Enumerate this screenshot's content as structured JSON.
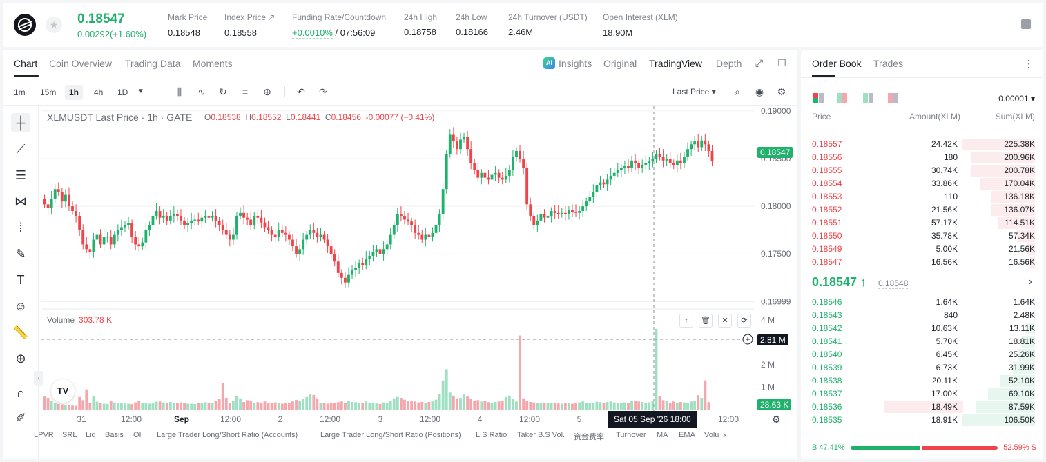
{
  "header": {
    "price": "0.18547",
    "change": "0.00292(+1.60%)",
    "stats": [
      {
        "label": "Mark Price",
        "value": "0.18548"
      },
      {
        "label": "Index Price ↗",
        "value": "0.18558"
      },
      {
        "label": "Funding Rate/Countdown",
        "value_up": "+0.0010%",
        "value": " / 07:56:09"
      },
      {
        "label": "24h High",
        "value": "0.18758"
      },
      {
        "label": "24h Low",
        "value": "0.18166"
      },
      {
        "label": "24h Turnover (USDT)",
        "value": "2.46M"
      },
      {
        "label": "Open Interest (XLM)",
        "value": "18.90M"
      }
    ]
  },
  "chart_tabs": [
    "Chart",
    "Coin Overview",
    "Trading Data",
    "Moments"
  ],
  "view_tabs": {
    "insights": "Insights",
    "ai": "AI",
    "original": "Original",
    "tradingview": "TradingView",
    "depth": "Depth"
  },
  "toolbar": {
    "intervals": [
      "1m",
      "15m",
      "1h",
      "4h",
      "1D"
    ],
    "active_interval": "1h",
    "price_type": "Last Price ▾"
  },
  "legend": {
    "title": "XLMUSDT Last Price · 1h · GATE",
    "o_label": "O",
    "o": "0.18538",
    "h_label": "H",
    "h": "0.18552",
    "l_label": "L",
    "l": "0.18441",
    "c_label": "C",
    "c": "0.18456",
    "chg": "-0.00077 (−0.41%)"
  },
  "volume_legend": {
    "label": "Volume",
    "value": "303.78 K"
  },
  "price_tags": {
    "last": "0.18547",
    "vol_cross": "2.81 M",
    "vol_last": "28.63 K"
  },
  "crosshair_date": "Sat 05 Sep '26   18:00",
  "tv_logo": "TV",
  "indicators": [
    "LPVR",
    "SRL",
    "Liq",
    "Basis",
    "OI",
    "Large Trader Long/Short Ratio (Accounts)",
    "Large Trader Long/Short Ratio (Positions)",
    "L.S Ratio",
    "Taker B.S Vol.",
    "资金费率",
    "Turnover",
    "MA",
    "EMA",
    "Volu"
  ],
  "chart_data": {
    "type": "candlestick",
    "title": "XLMUSDT Last Price · 1h · GATE",
    "price_ticks": [
      "0.19000",
      "0.18500",
      "0.18000",
      "0.17500",
      "0.16999"
    ],
    "price_tick_values": [
      0.19,
      0.185,
      0.18,
      0.175,
      0.16999
    ],
    "volume_ticks": [
      "4 M",
      "2 M",
      "1 M"
    ],
    "volume_tick_values": [
      4,
      2,
      1
    ],
    "x_ticks": [
      "31",
      "12:00",
      "Sep",
      "12:00",
      "2",
      "12:00",
      "3",
      "12:00",
      "4",
      "12:00",
      "5",
      "12:00"
    ],
    "ylim": [
      0.1693,
      0.1905
    ],
    "closes": [
      0.1802,
      0.1798,
      0.1808,
      0.1818,
      0.1815,
      0.1805,
      0.1812,
      0.18,
      0.1795,
      0.179,
      0.1775,
      0.176,
      0.1755,
      0.1752,
      0.1765,
      0.177,
      0.176,
      0.1768,
      0.1768,
      0.176,
      0.177,
      0.1775,
      0.1778,
      0.178,
      0.1782,
      0.1768,
      0.176,
      0.1758,
      0.1762,
      0.1775,
      0.178,
      0.179,
      0.1795,
      0.1788,
      0.179,
      0.1785,
      0.179,
      0.1792,
      0.179,
      0.1785,
      0.178,
      0.1782,
      0.1785,
      0.1786,
      0.1784,
      0.1788,
      0.179,
      0.1788,
      0.179,
      0.1785,
      0.178,
      0.1775,
      0.177,
      0.1765,
      0.177,
      0.179,
      0.1793,
      0.1788,
      0.1786,
      0.178,
      0.179,
      0.1788,
      0.1783,
      0.1778,
      0.1775,
      0.177,
      0.1768,
      0.1775,
      0.1772,
      0.177,
      0.1765,
      0.1758,
      0.175,
      0.1755,
      0.1765,
      0.177,
      0.1775,
      0.1772,
      0.1768,
      0.177,
      0.1765,
      0.1758,
      0.175,
      0.1742,
      0.173,
      0.1725,
      0.172,
      0.1728,
      0.1733,
      0.1735,
      0.174,
      0.1738,
      0.1745,
      0.1748,
      0.1752,
      0.1755,
      0.175,
      0.1755,
      0.176,
      0.177,
      0.178,
      0.1792,
      0.179,
      0.1786,
      0.1784,
      0.178,
      0.1772,
      0.177,
      0.1765,
      0.177,
      0.1768,
      0.1772,
      0.178,
      0.1792,
      0.1818,
      0.1855,
      0.1875,
      0.1868,
      0.186,
      0.187,
      0.1873,
      0.186,
      0.1845,
      0.1838,
      0.183,
      0.1835,
      0.183,
      0.1828,
      0.1833,
      0.1835,
      0.183,
      0.1828,
      0.1832,
      0.1838,
      0.1852,
      0.1858,
      0.185,
      0.184,
      0.1802,
      0.179,
      0.178,
      0.1785,
      0.1792,
      0.1788,
      0.179,
      0.1795,
      0.1793,
      0.1792,
      0.1793,
      0.1792,
      0.1796,
      0.1794,
      0.1793,
      0.1795,
      0.18,
      0.1805,
      0.181,
      0.1815,
      0.1822,
      0.1825,
      0.1823,
      0.1828,
      0.1832,
      0.1835,
      0.1838,
      0.184,
      0.1842,
      0.184,
      0.1848,
      0.1845,
      0.184,
      0.1843,
      0.1845,
      0.1847,
      0.185,
      0.1855,
      0.1852,
      0.1848,
      0.185,
      0.1845,
      0.1843,
      0.1848,
      0.1845,
      0.1852,
      0.186,
      0.1865,
      0.1868,
      0.1862,
      0.1869,
      0.1865,
      0.1858,
      0.1847
    ],
    "volumes_k": [
      600,
      520,
      400,
      300,
      250,
      230,
      200,
      190,
      180,
      170,
      560,
      420,
      900,
      300,
      600,
      350,
      300,
      260,
      250,
      400,
      320,
      280,
      300,
      270,
      260,
      240,
      320,
      400,
      280,
      300,
      260,
      300,
      350,
      360,
      320,
      300,
      340,
      300,
      280,
      320,
      290,
      260,
      260,
      250,
      280,
      300,
      330,
      310,
      290,
      380,
      460,
      1200,
      520,
      300,
      400,
      600,
      500,
      340,
      420,
      380,
      300,
      330,
      310,
      360,
      300,
      280,
      320,
      300,
      260,
      300,
      280,
      360,
      430,
      390,
      470,
      560,
      700,
      650,
      500,
      280,
      300,
      260,
      310,
      280,
      330,
      360,
      300,
      390,
      340,
      330,
      300,
      280,
      360,
      310,
      290,
      270,
      250,
      320,
      300,
      380,
      500,
      560,
      520,
      440,
      400,
      380,
      360,
      320,
      340,
      300,
      340,
      360,
      440,
      700,
      1300,
      1800,
      760,
      620,
      500,
      520,
      700,
      580,
      480,
      380,
      420,
      360,
      380,
      330,
      300,
      340,
      360,
      380,
      560,
      620,
      480,
      360,
      3300,
      500,
      400,
      340,
      320,
      300,
      280,
      310,
      290,
      280,
      300,
      270,
      260,
      300,
      280,
      260,
      300,
      320,
      360,
      300,
      280,
      310,
      350,
      330,
      300,
      340,
      360,
      320,
      300,
      280,
      320,
      300,
      380,
      400,
      360,
      340,
      300,
      320,
      380,
      3600,
      600,
      420,
      380,
      300,
      360,
      300,
      340,
      320,
      300,
      360,
      400,
      640,
      520,
      1300,
      330
    ]
  },
  "order_book": {
    "tabs": [
      "Order Book",
      "Trades"
    ],
    "precision": "0.00001 ▾",
    "headers": {
      "price": "Price",
      "amount": "Amount(XLM)",
      "sum": "Sum(XLM)"
    },
    "asks": [
      {
        "price": "0.18557",
        "amount": "24.42K",
        "sum": "225.38K",
        "depth": 1.0
      },
      {
        "price": "0.18556",
        "amount": "180",
        "sum": "200.96K",
        "depth": 0.89
      },
      {
        "price": "0.18555",
        "amount": "30.74K",
        "sum": "200.78K",
        "depth": 0.89
      },
      {
        "price": "0.18554",
        "amount": "33.86K",
        "sum": "170.04K",
        "depth": 0.75
      },
      {
        "price": "0.18553",
        "amount": "110",
        "sum": "136.18K",
        "depth": 0.6
      },
      {
        "price": "0.18552",
        "amount": "21.56K",
        "sum": "136.07K",
        "depth": 0.6
      },
      {
        "price": "0.18551",
        "amount": "57.17K",
        "sum": "114.51K",
        "depth": 0.51
      },
      {
        "price": "0.18550",
        "amount": "35.78K",
        "sum": "57.34K",
        "depth": 0.25
      },
      {
        "price": "0.18549",
        "amount": "5.00K",
        "sum": "21.56K",
        "depth": 0.1
      },
      {
        "price": "0.18547",
        "amount": "16.56K",
        "sum": "16.56K",
        "depth": 0.07
      }
    ],
    "mid_price": "0.18547 ↑",
    "mid_mark": "0.18548",
    "mid_arrow": "›",
    "bids": [
      {
        "price": "0.18546",
        "amount": "1.64K",
        "sum": "1.64K",
        "depth": 0.01
      },
      {
        "price": "0.18543",
        "amount": "840",
        "sum": "2.48K",
        "depth": 0.02
      },
      {
        "price": "0.18542",
        "amount": "10.63K",
        "sum": "13.11K",
        "depth": 0.12
      },
      {
        "price": "0.18541",
        "amount": "5.70K",
        "sum": "18.81K",
        "depth": 0.18
      },
      {
        "price": "0.18540",
        "amount": "6.45K",
        "sum": "25.26K",
        "depth": 0.24
      },
      {
        "price": "0.18539",
        "amount": "6.73K",
        "sum": "31.99K",
        "depth": 0.3
      },
      {
        "price": "0.18538",
        "amount": "20.11K",
        "sum": "52.10K",
        "depth": 0.49
      },
      {
        "price": "0.18537",
        "amount": "17.00K",
        "sum": "69.10K",
        "depth": 0.65
      },
      {
        "price": "0.18536",
        "amount": "18.49K",
        "sum": "87.59K",
        "depth": 0.82,
        "highlight": true
      },
      {
        "price": "0.18535",
        "amount": "18.91K",
        "sum": "106.50K",
        "depth": 1.0
      }
    ],
    "buy_ratio": "B 47.41%",
    "sell_ratio": "52.59% S",
    "buy_fraction": 0.4741
  },
  "colors": {
    "up": "#20b26c",
    "down": "#ef454a",
    "up_vol": "#9fe0c2",
    "down_vol": "#f4a7ad"
  }
}
